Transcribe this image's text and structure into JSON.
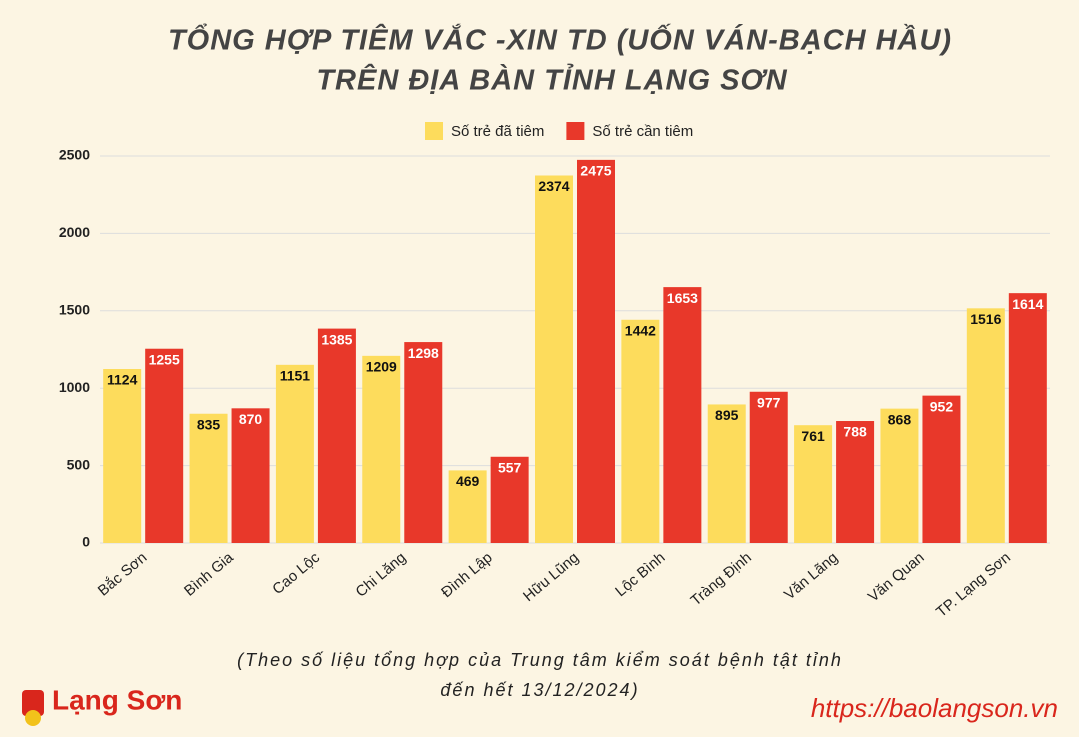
{
  "chart_data": {
    "type": "bar",
    "title": [
      "TỔNG HỢP TIÊM VẮC -XIN TD (UỐN VÁN-BẠCH HẦU)",
      "TRÊN ĐỊA BÀN TỈNH LẠNG  SƠN"
    ],
    "categories": [
      "Bắc Sơn",
      "Bình Gia",
      "Cao Lộc",
      "Chi Lăng",
      "Đình Lập",
      "Hữu Lũng",
      "Lộc Bình",
      "Tràng Định",
      "Văn Lãng",
      "Văn Quan",
      "TP. Lạng Sơn"
    ],
    "series": [
      {
        "name": "Số trẻ đã tiêm",
        "color": "#fddc5c",
        "values": [
          1124,
          835,
          1151,
          1209,
          469,
          2374,
          1442,
          895,
          761,
          868,
          1516
        ]
      },
      {
        "name": "Số trẻ cần tiêm",
        "color": "#e8382a",
        "values": [
          1255,
          870,
          1385,
          1298,
          557,
          2475,
          1653,
          977,
          788,
          952,
          1614
        ]
      }
    ],
    "ylim": [
      0,
      2500
    ],
    "yticks": [
      0,
      500,
      1000,
      1500,
      2000,
      2500
    ],
    "grid": true,
    "legend": "top",
    "source": [
      "(Theo số liệu tổng hợp của Trung tâm kiểm soát bệnh tật tỉnh",
      "đến hết 13/12/2024)"
    ]
  },
  "branding": {
    "logo": "Lạng Sơn",
    "url": "https://baolangson.vn"
  }
}
